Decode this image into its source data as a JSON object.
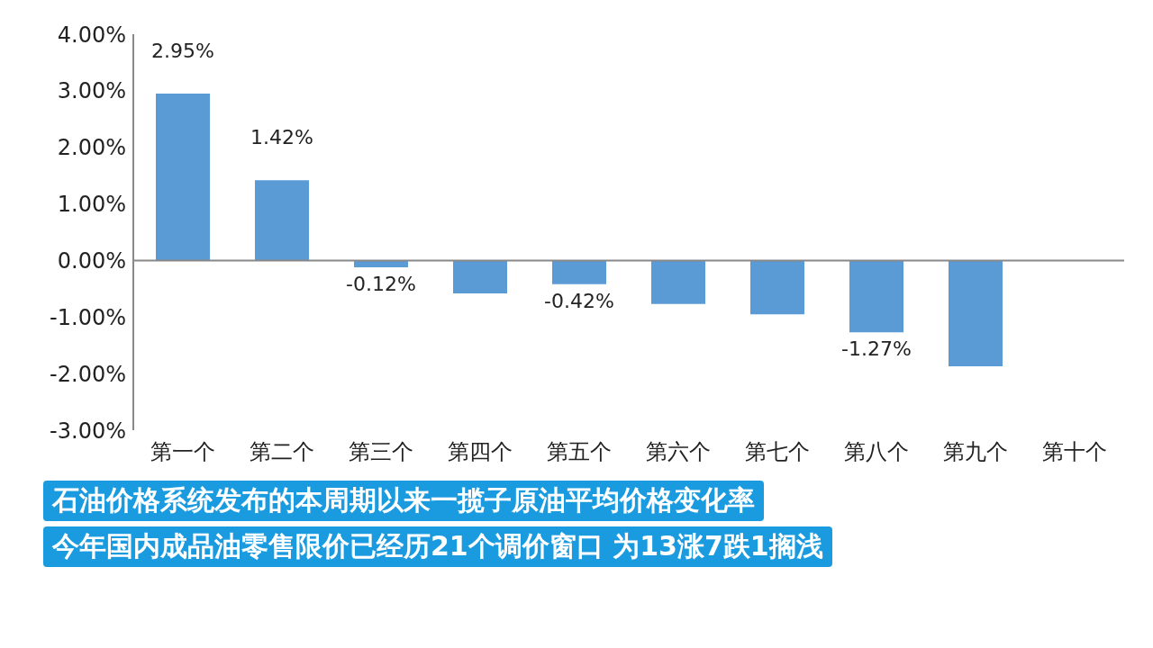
{
  "chart_data": {
    "type": "bar",
    "categories": [
      "第一个",
      "第二个",
      "第三个",
      "第四个",
      "第五个",
      "第六个",
      "第七个",
      "第八个",
      "第九个",
      "第十个"
    ],
    "values": [
      2.95,
      1.42,
      -0.12,
      -0.58,
      -0.42,
      -0.77,
      -0.95,
      -1.27,
      -1.87,
      null
    ],
    "value_labels": [
      "2.95%",
      "1.42%",
      "-0.12%",
      null,
      "-0.42%",
      null,
      null,
      "-1.27%",
      null,
      null
    ],
    "color": "#5b9bd5",
    "ylim": [
      -3,
      4
    ],
    "yticks": [
      {
        "value": -3,
        "label": "-3.00%"
      },
      {
        "value": -2,
        "label": "-2.00%"
      },
      {
        "value": -1,
        "label": "-1.00%"
      },
      {
        "value": 0,
        "label": "0.00%"
      },
      {
        "value": 1,
        "label": "1.00%"
      },
      {
        "value": 2,
        "label": "2.00%"
      },
      {
        "value": 3,
        "label": "3.00%"
      },
      {
        "value": 4,
        "label": "4.00%"
      }
    ],
    "legend": false,
    "annotations": [
      "石油价格系统发布的本周期以来一揽子原油平均价格变化率",
      "今年国内成品油零售限价已经历21个调价窗口 为13涨7跌1搁浅"
    ]
  }
}
